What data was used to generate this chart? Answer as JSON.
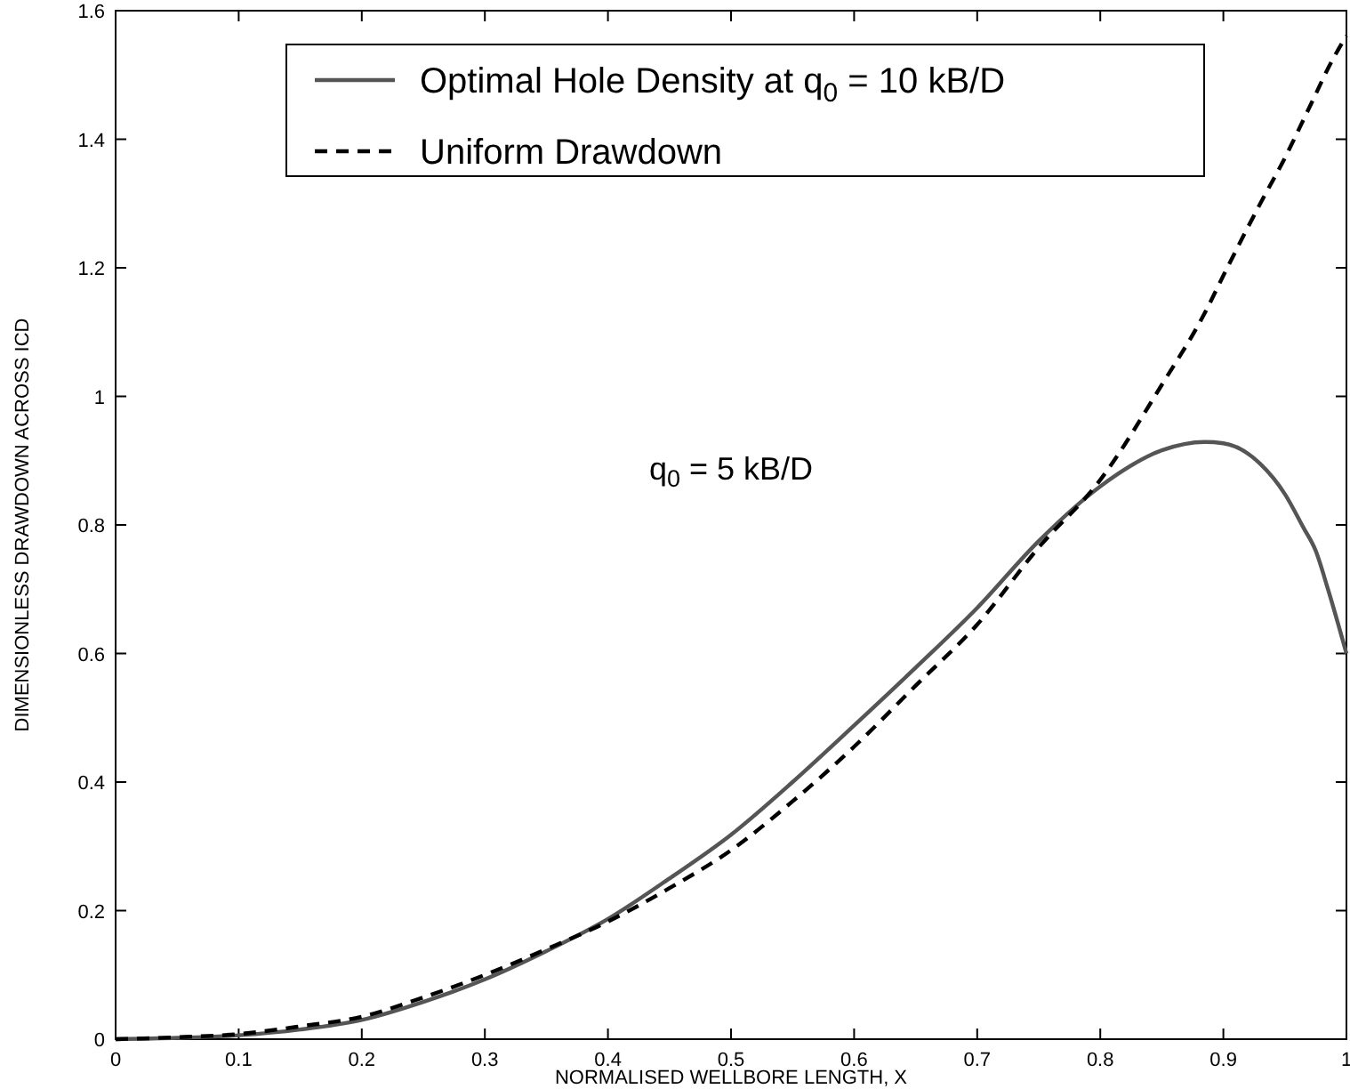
{
  "chart_data": {
    "type": "line",
    "xlabel": "NORMALISED WELLBORE LENGTH,   X",
    "ylabel": "DIMENSIONLESS DRAWDOWN ACROSS ICD",
    "annotations": [
      "q$_{0}$ = 5 kB/D"
    ],
    "x": [
      0,
      0.05,
      0.1,
      0.15,
      0.2,
      0.25,
      0.3,
      0.35,
      0.4,
      0.45,
      0.5,
      0.55,
      0.6,
      0.65,
      0.7,
      0.75,
      0.8,
      0.85,
      0.885,
      0.9,
      0.93,
      0.95,
      0.965,
      0.975,
      0.985,
      1.0
    ],
    "series": [
      {
        "name": "Optimal Hole Density at q$_{0}$ = 10 kB/D",
        "color": "#555555",
        "line_style": "solid",
        "values": [
          0,
          0.002,
          0.006,
          0.015,
          0.03,
          0.058,
          0.093,
          0.137,
          0.187,
          0.25,
          0.318,
          0.4,
          0.488,
          0.578,
          0.671,
          0.775,
          0.86,
          0.916,
          0.929,
          0.927,
          0.895,
          0.848,
          0.796,
          0.76,
          0.7,
          0.6
        ]
      },
      {
        "name": "Uniform Drawdown",
        "color": "#000000",
        "line_style": "dashed",
        "values": [
          0,
          0.003,
          0.008,
          0.02,
          0.035,
          0.065,
          0.1,
          0.14,
          0.183,
          0.235,
          0.294,
          0.37,
          0.455,
          0.55,
          0.645,
          0.765,
          0.87,
          1.018,
          1.13,
          1.188,
          1.3,
          1.371,
          1.43,
          1.47,
          1.51,
          1.561
        ]
      }
    ],
    "xlim": [
      0,
      1
    ],
    "ylim": [
      0,
      1.6
    ],
    "xticks": [
      0,
      0.1,
      0.2,
      0.3,
      0.4,
      0.5,
      0.6,
      0.7,
      0.8,
      0.9,
      1
    ],
    "yticks": [
      0,
      0.2,
      0.4,
      0.6,
      0.8,
      1,
      1.2,
      1.4,
      1.6
    ],
    "grid": false,
    "legend": "top",
    "marker": "none"
  }
}
